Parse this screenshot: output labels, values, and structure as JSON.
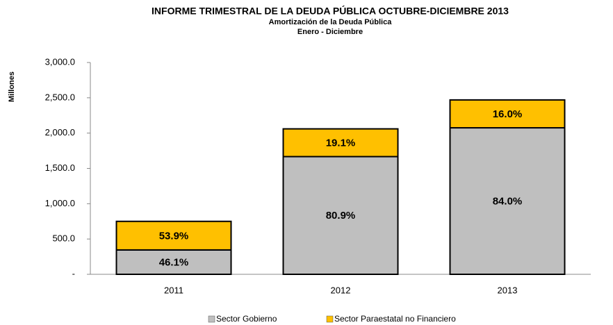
{
  "chart_data": {
    "type": "stacked_bar",
    "title": "INFORME TRIMESTRAL DE LA DEUDA PÚBLICA OCTUBRE-DICIEMBRE 2013",
    "subtitle": "Amortización de la Deuda Pública",
    "subtitle2": "Enero - Diciembre",
    "y_label": "Millones",
    "categories": [
      "2011",
      "2012",
      "2013"
    ],
    "series": [
      {
        "name": "Sector Gobierno",
        "color": "#bfbfbf",
        "values": [
          345,
          1667,
          2075
        ],
        "share_labels": [
          "46.1%",
          "80.9%",
          "84.0%"
        ]
      },
      {
        "name": "Sector Paraestatal no Financiero",
        "color": "#ffc000",
        "values": [
          405,
          393,
          395
        ],
        "share_labels": [
          "53.9%",
          "19.1%",
          "16.0%"
        ]
      }
    ],
    "ylim": [
      0,
      3000
    ],
    "yticks": [
      {
        "value": 0,
        "label": "-"
      },
      {
        "value": 500,
        "label": "500.0"
      },
      {
        "value": 1000,
        "label": "1,000.0"
      },
      {
        "value": 1500,
        "label": "1,500.0"
      },
      {
        "value": 2000,
        "label": "2,000.0"
      },
      {
        "value": 2500,
        "label": "2,500.0"
      },
      {
        "value": 3000,
        "label": "3,000.0"
      }
    ],
    "grid": false
  }
}
